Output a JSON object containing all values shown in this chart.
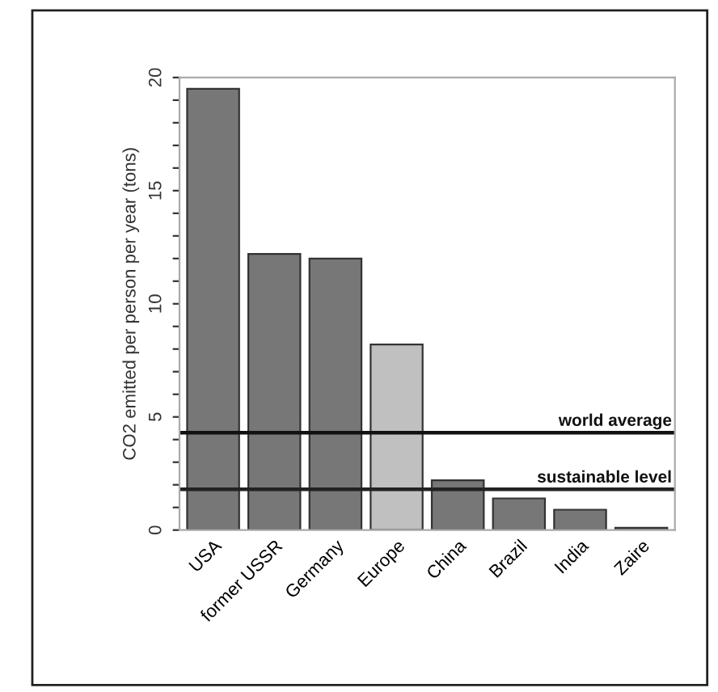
{
  "chart_data": {
    "type": "bar",
    "ylabel": "CO2 emitted per person per year (tons)",
    "categories": [
      "USA",
      "former USSR",
      "Germany",
      "Europe",
      "China",
      "Brazil",
      "India",
      "Zaire"
    ],
    "values": [
      19.5,
      12.2,
      12.0,
      8.2,
      2.2,
      1.4,
      0.9,
      0.1
    ],
    "colors": [
      "#777777",
      "#777777",
      "#777777",
      "#c0c0c0",
      "#777777",
      "#777777",
      "#777777",
      "#777777"
    ],
    "ylim": [
      0,
      20
    ],
    "yticks": [
      0,
      {
        "value": 1,
        "label": null
      },
      {
        "value": 2,
        "label": null
      },
      {
        "value": 3,
        "label": null
      },
      {
        "value": 4,
        "label": null
      },
      5,
      {
        "value": 6,
        "label": null
      },
      {
        "value": 7,
        "label": null
      },
      {
        "value": 8,
        "label": null
      },
      {
        "value": 9,
        "label": null
      },
      10,
      {
        "value": 11,
        "label": null
      },
      {
        "value": 12,
        "label": null
      },
      {
        "value": 13,
        "label": null
      },
      {
        "value": 14,
        "label": null
      },
      15,
      {
        "value": 16,
        "label": null
      },
      {
        "value": 17,
        "label": null
      },
      {
        "value": 18,
        "label": null
      },
      {
        "value": 19,
        "label": null
      },
      20
    ],
    "ref_lines": [
      {
        "axis": "y",
        "value": 4.3,
        "label": "world average",
        "color": "#111111"
      },
      {
        "axis": "y",
        "value": 1.8,
        "label": "sustainable level",
        "color": "#222222"
      }
    ],
    "grid": false
  }
}
